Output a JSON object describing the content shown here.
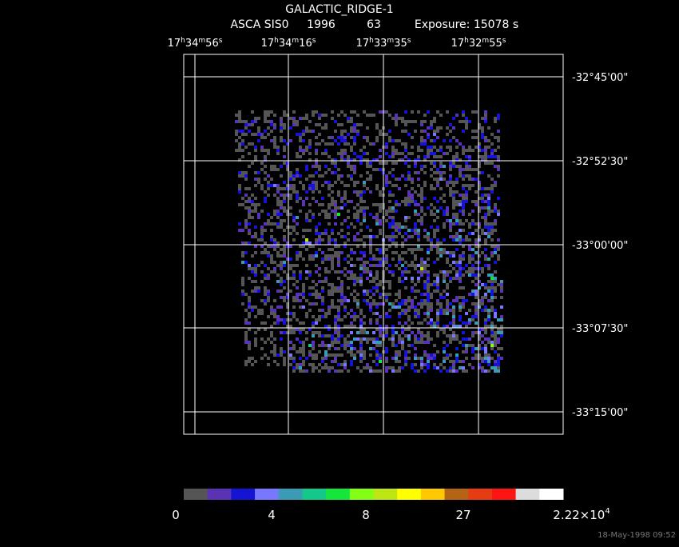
{
  "header": {
    "title": "GALACTIC_RIDGE-1",
    "instrument": "ASCA SIS0",
    "year": "1996",
    "sequence": "63",
    "exposure": "Exposure: 15078 s"
  },
  "ra_labels": [
    [
      "17",
      "h",
      "34",
      "m",
      "56",
      "s"
    ],
    [
      "17",
      "h",
      "34",
      "m",
      "16",
      "s"
    ],
    [
      "17",
      "h",
      "33",
      "m",
      "35",
      "s"
    ],
    [
      "17",
      "h",
      "32",
      "m",
      "55",
      "s"
    ]
  ],
  "dec_labels": [
    "-32°45'00\"",
    "-32°52'30\"",
    "-33°00'00\"",
    "-33°07'30\"",
    "-33°15'00\""
  ],
  "colorbar": {
    "colors": [
      "#555555",
      "#5a32b4",
      "#1414d2",
      "#7878ff",
      "#3c9bb4",
      "#14c88c",
      "#14e63c",
      "#82ff14",
      "#bee614",
      "#ffff00",
      "#ffc800",
      "#b46414",
      "#e63c14",
      "#ff1414",
      "#dcdcdc",
      "#ffffff"
    ],
    "labels": [
      [
        "0"
      ],
      [
        "4"
      ],
      [
        "8"
      ],
      [
        "27"
      ],
      [
        "2.22×10",
        "4"
      ]
    ]
  },
  "timestamp": "18-May-1998 09:52"
}
